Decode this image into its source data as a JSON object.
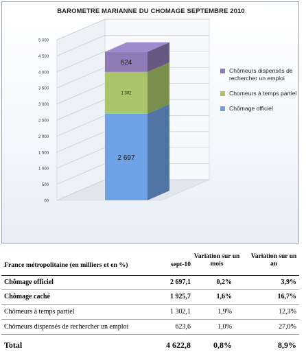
{
  "chart_data": {
    "type": "bar",
    "title": "BAROMETRE MARIANNE DU CHOMAGE  SEPTEMBRE 2010",
    "ylim": [
      0,
      5000
    ],
    "yticks": [
      "5 000",
      "4 500",
      "4 000",
      "3 500",
      "3 000",
      "2 500",
      "2 000",
      "1 500",
      "1 000",
      "500",
      "00"
    ],
    "tick_values": [
      5000,
      4500,
      4000,
      3500,
      3000,
      2500,
      2000,
      1500,
      1000,
      500,
      0
    ],
    "stacked": true,
    "series": [
      {
        "name": "Chômage officiel",
        "value": 2697,
        "label": "2 697",
        "color": "#6fa2e4"
      },
      {
        "name": "Chomeurs à temps partiel",
        "value": 1302,
        "label": "1 302",
        "color": "#a9c66a"
      },
      {
        "name": "Chômeurs dispensés de rechercher un emploi",
        "value": 624,
        "label": "624",
        "color": "#8f79b6"
      }
    ],
    "legend": [
      "Chômeurs dispensés de rechercher un emploi",
      "Chomeurs à temps partiel",
      "Chômage officiel"
    ],
    "legend_position": "right",
    "grid": true
  },
  "table": {
    "header": {
      "label": "France métropolitaine (en milliers et en %)",
      "col1": "sept-10",
      "col2": "Variation sur un mois",
      "col3": "Variation sur un an"
    },
    "rows": [
      {
        "label": "Chômage officiel",
        "v1": "2 697,1",
        "v2": "0,2%",
        "v3": "3,9%"
      },
      {
        "label": "Chômage caché",
        "v1": "1 925,7",
        "v2": "1,6%",
        "v3": "16,7%"
      },
      {
        "label": "Chômeurs à temps partiel",
        "v1": "1 302,1",
        "v2": "1,9%",
        "v3": "12,3%"
      },
      {
        "label": "Chômeurs dispensés de rechercher un emploi",
        "v1": "623,6",
        "v2": "1,0%",
        "v3": "27,0%"
      },
      {
        "label": "Total",
        "v1": "4 622,8",
        "v2": "0,8%",
        "v3": "8,9%"
      }
    ]
  }
}
